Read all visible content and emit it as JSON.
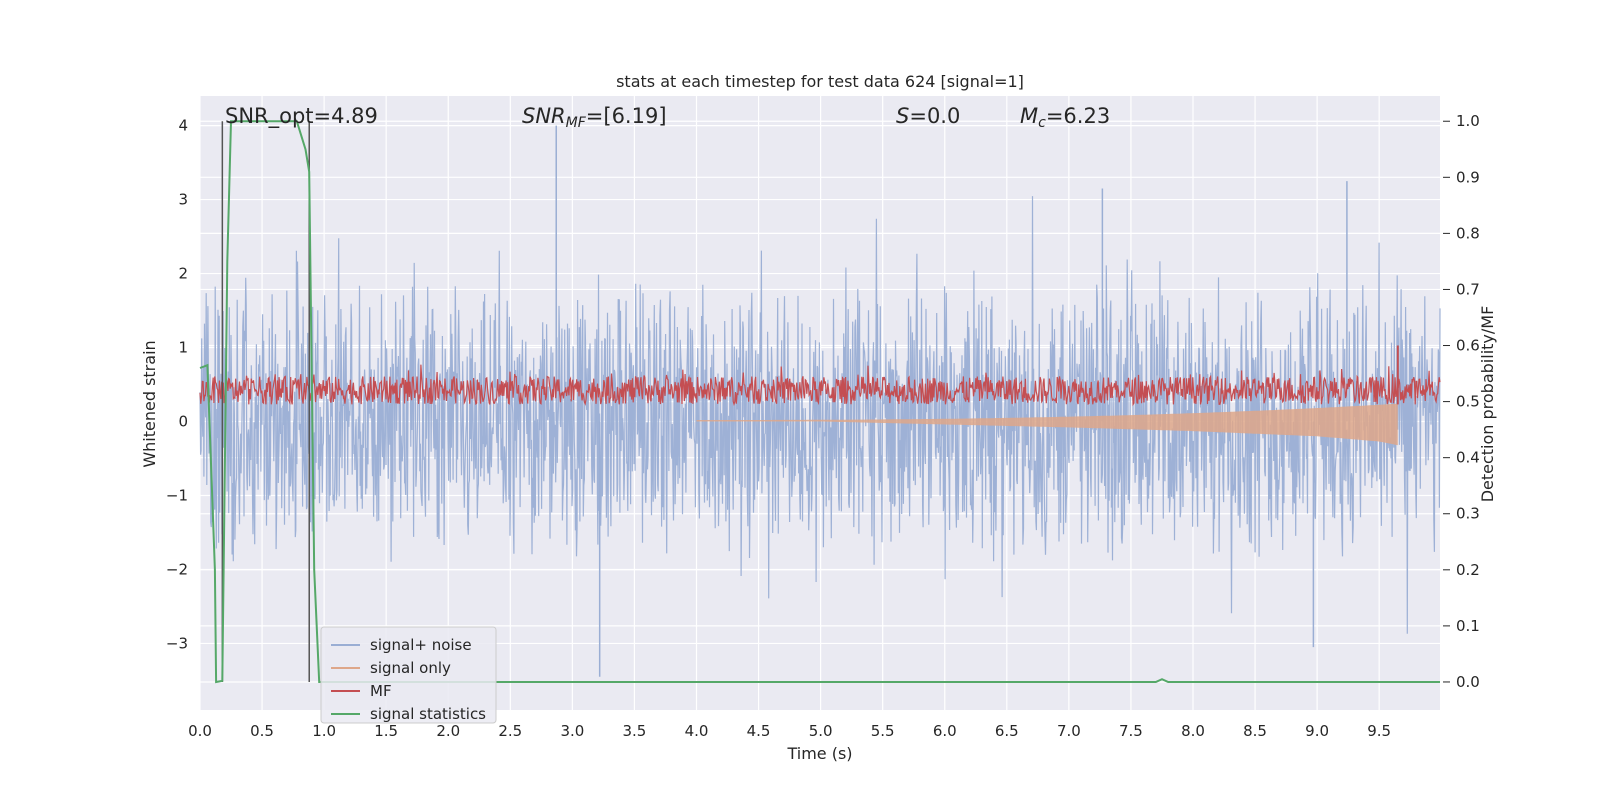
{
  "chart_data": {
    "type": "line",
    "title": "stats at each timestep for test data 624 [signal=1]",
    "xlabel": "Time (s)",
    "ylabel_left": "Whitened strain",
    "ylabel_right": "Detection probability/MF",
    "xlim": [
      0.0,
      9.99
    ],
    "ylim_left": [
      -3.9,
      4.4
    ],
    "ylim_right": [
      -0.05,
      1.045
    ],
    "x_ticks": [
      "0.0",
      "0.5",
      "1.0",
      "1.5",
      "2.0",
      "2.5",
      "3.0",
      "3.5",
      "4.0",
      "4.5",
      "5.0",
      "5.5",
      "6.0",
      "6.5",
      "7.0",
      "7.5",
      "8.0",
      "8.5",
      "9.0",
      "9.5"
    ],
    "y_left_ticks": [
      "4",
      "3",
      "2",
      "1",
      "0",
      "−1",
      "−2",
      "−3"
    ],
    "y_right_ticks": [
      "1.0",
      "0.9",
      "0.8",
      "0.7",
      "0.6",
      "0.5",
      "0.4",
      "0.3",
      "0.2",
      "0.1",
      "0.0"
    ],
    "grid": true,
    "legend_position": "lower-left",
    "annotations": {
      "snr_opt": "SNR_opt=4.89",
      "snr_mf_label": "SNR",
      "snr_mf_sub": "MF",
      "snr_mf_value": "=[6.19]",
      "s_label": "S",
      "s_value": "=0.0",
      "mc_label": "M",
      "mc_sub": "c",
      "mc_value": "=6.23"
    },
    "vertical_lines_x": [
      0.18,
      0.88
    ],
    "series": [
      {
        "name": "signal+ noise",
        "color": "#9aaed4",
        "axis": "left",
        "envelope": {
          "typical_min": -1.5,
          "typical_max": 1.7,
          "peaks": [
            [
              2.87,
              4.0
            ],
            [
              3.22,
              -3.45
            ],
            [
              8.97,
              -3.05
            ],
            [
              9.24,
              3.25
            ],
            [
              7.27,
              3.15
            ]
          ]
        }
      },
      {
        "name": "signal only",
        "color": "#dea78a",
        "axis": "left",
        "points": [
          [
            0.0,
            0.0
          ],
          [
            5.0,
            0.0
          ],
          [
            6.0,
            -0.04
          ],
          [
            7.0,
            -0.08
          ],
          [
            8.0,
            -0.13
          ],
          [
            9.0,
            -0.2
          ],
          [
            9.5,
            -0.27
          ],
          [
            9.65,
            -0.32
          ]
        ]
      },
      {
        "name": "MF",
        "color": "#c44e52",
        "axis": "right",
        "band": [
          0.495,
          0.545
        ],
        "spike": [
          9.65,
          0.6
        ]
      },
      {
        "name": "signal statistics",
        "color": "#55a868",
        "axis": "right",
        "points": [
          [
            0.0,
            0.56
          ],
          [
            0.06,
            0.565
          ],
          [
            0.12,
            0.2
          ],
          [
            0.13,
            0.0
          ],
          [
            0.18,
            0.002
          ],
          [
            0.22,
            0.75
          ],
          [
            0.25,
            1.0
          ],
          [
            0.3,
            1.0
          ],
          [
            0.5,
            1.0
          ],
          [
            0.78,
            1.0
          ],
          [
            0.85,
            0.95
          ],
          [
            0.88,
            0.91
          ],
          [
            0.92,
            0.2
          ],
          [
            0.96,
            0.0
          ],
          [
            1.5,
            0.0
          ],
          [
            7.5,
            0.0
          ],
          [
            7.7,
            0.0
          ],
          [
            7.75,
            0.005
          ],
          [
            7.8,
            0.0
          ],
          [
            9.99,
            0.0
          ]
        ]
      }
    ]
  }
}
